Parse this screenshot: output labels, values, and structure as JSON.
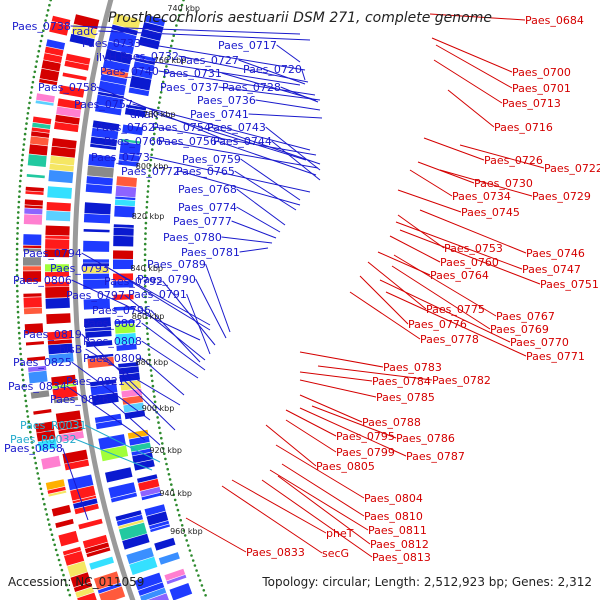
{
  "title": "Prosthecochloris aestuarii DSM 271, complete genome",
  "footer": {
    "accession": "Accession: NC_011059",
    "stats": "Topology: circular; Length: 2,512,923 bp; Genes: 2,312"
  },
  "colors": {
    "left_labels": "#1a1acc",
    "right_labels": "#d40000",
    "rna_labels": "#22aacc",
    "backbone": "#9a9a9a",
    "tick_dots": "#2d8a2d"
  },
  "kbp_ticks": [
    "740 kbp",
    "760 kbp",
    "780 kbp",
    "800 kbp",
    "820 kbp",
    "840 kbp",
    "860 kbp",
    "880 kbp",
    "900 kbp",
    "920 kbp",
    "940 kbp",
    "960 kbp"
  ],
  "left_labels": [
    "Paes_0738",
    "radC",
    "Paes_0733",
    "Paes_0732",
    "ilvH",
    "Paes_0727",
    "Paes_0740",
    "Paes_0731",
    "Paes_0758",
    "Paes_0737",
    "Paes_0728",
    "Paes_0757",
    "dnaK",
    "Paes_0736",
    "Paes_0741",
    "Paes_0762",
    "Paes_0754",
    "Paes_0743",
    "Paes_0766",
    "Paes_0756",
    "Paes_0744",
    "Paes_0773",
    "Paes_0759",
    "Paes_0772",
    "Paes_0765",
    "Paes_0768",
    "Paes_0774",
    "Paes_0777",
    "Paes_0780",
    "Paes_0781",
    "Paes_0794",
    "Paes_0789",
    "Paes_0793",
    "Paes_0790",
    "Paes_0806",
    "Paes_0792",
    "Paes_0791",
    "Paes_0797",
    "Paes_0796",
    "Paes_0802",
    "Paes_0808",
    "Paes_0819",
    "hisB",
    "Paes_0809",
    "Paes_0825",
    "Paes_0821",
    "Paes_0834",
    "Paes_0826",
    "Paes_0858",
    "Paes_0717",
    "Paes_0720"
  ],
  "rna_labels": [
    "Paes_R0031",
    "Paes_R0032"
  ],
  "right_labels": [
    "Paes_0684",
    "Paes_0700",
    "Paes_0701",
    "Paes_0713",
    "Paes_0716",
    "Paes_0726",
    "Paes_0722",
    "Paes_0730",
    "Paes_0734",
    "Paes_0729",
    "Paes_0745",
    "Paes_0753",
    "Paes_0746",
    "Paes_0760",
    "Paes_0747",
    "Paes_0764",
    "Paes_0751",
    "Paes_0775",
    "Paes_0767",
    "Paes_0776",
    "Paes_0769",
    "Paes_0778",
    "Paes_0770",
    "Paes_0771",
    "Paes_0783",
    "Paes_0784",
    "Paes_0782",
    "Paes_0785",
    "Paes_0788",
    "Paes_0795",
    "Paes_0786",
    "Paes_0799",
    "Paes_0787",
    "Paes_0805",
    "Paes_0804",
    "Paes_0810",
    "Paes_0811",
    "Paes_0812",
    "pheT",
    "Paes_0813",
    "secG",
    "Paes_0833"
  ]
}
